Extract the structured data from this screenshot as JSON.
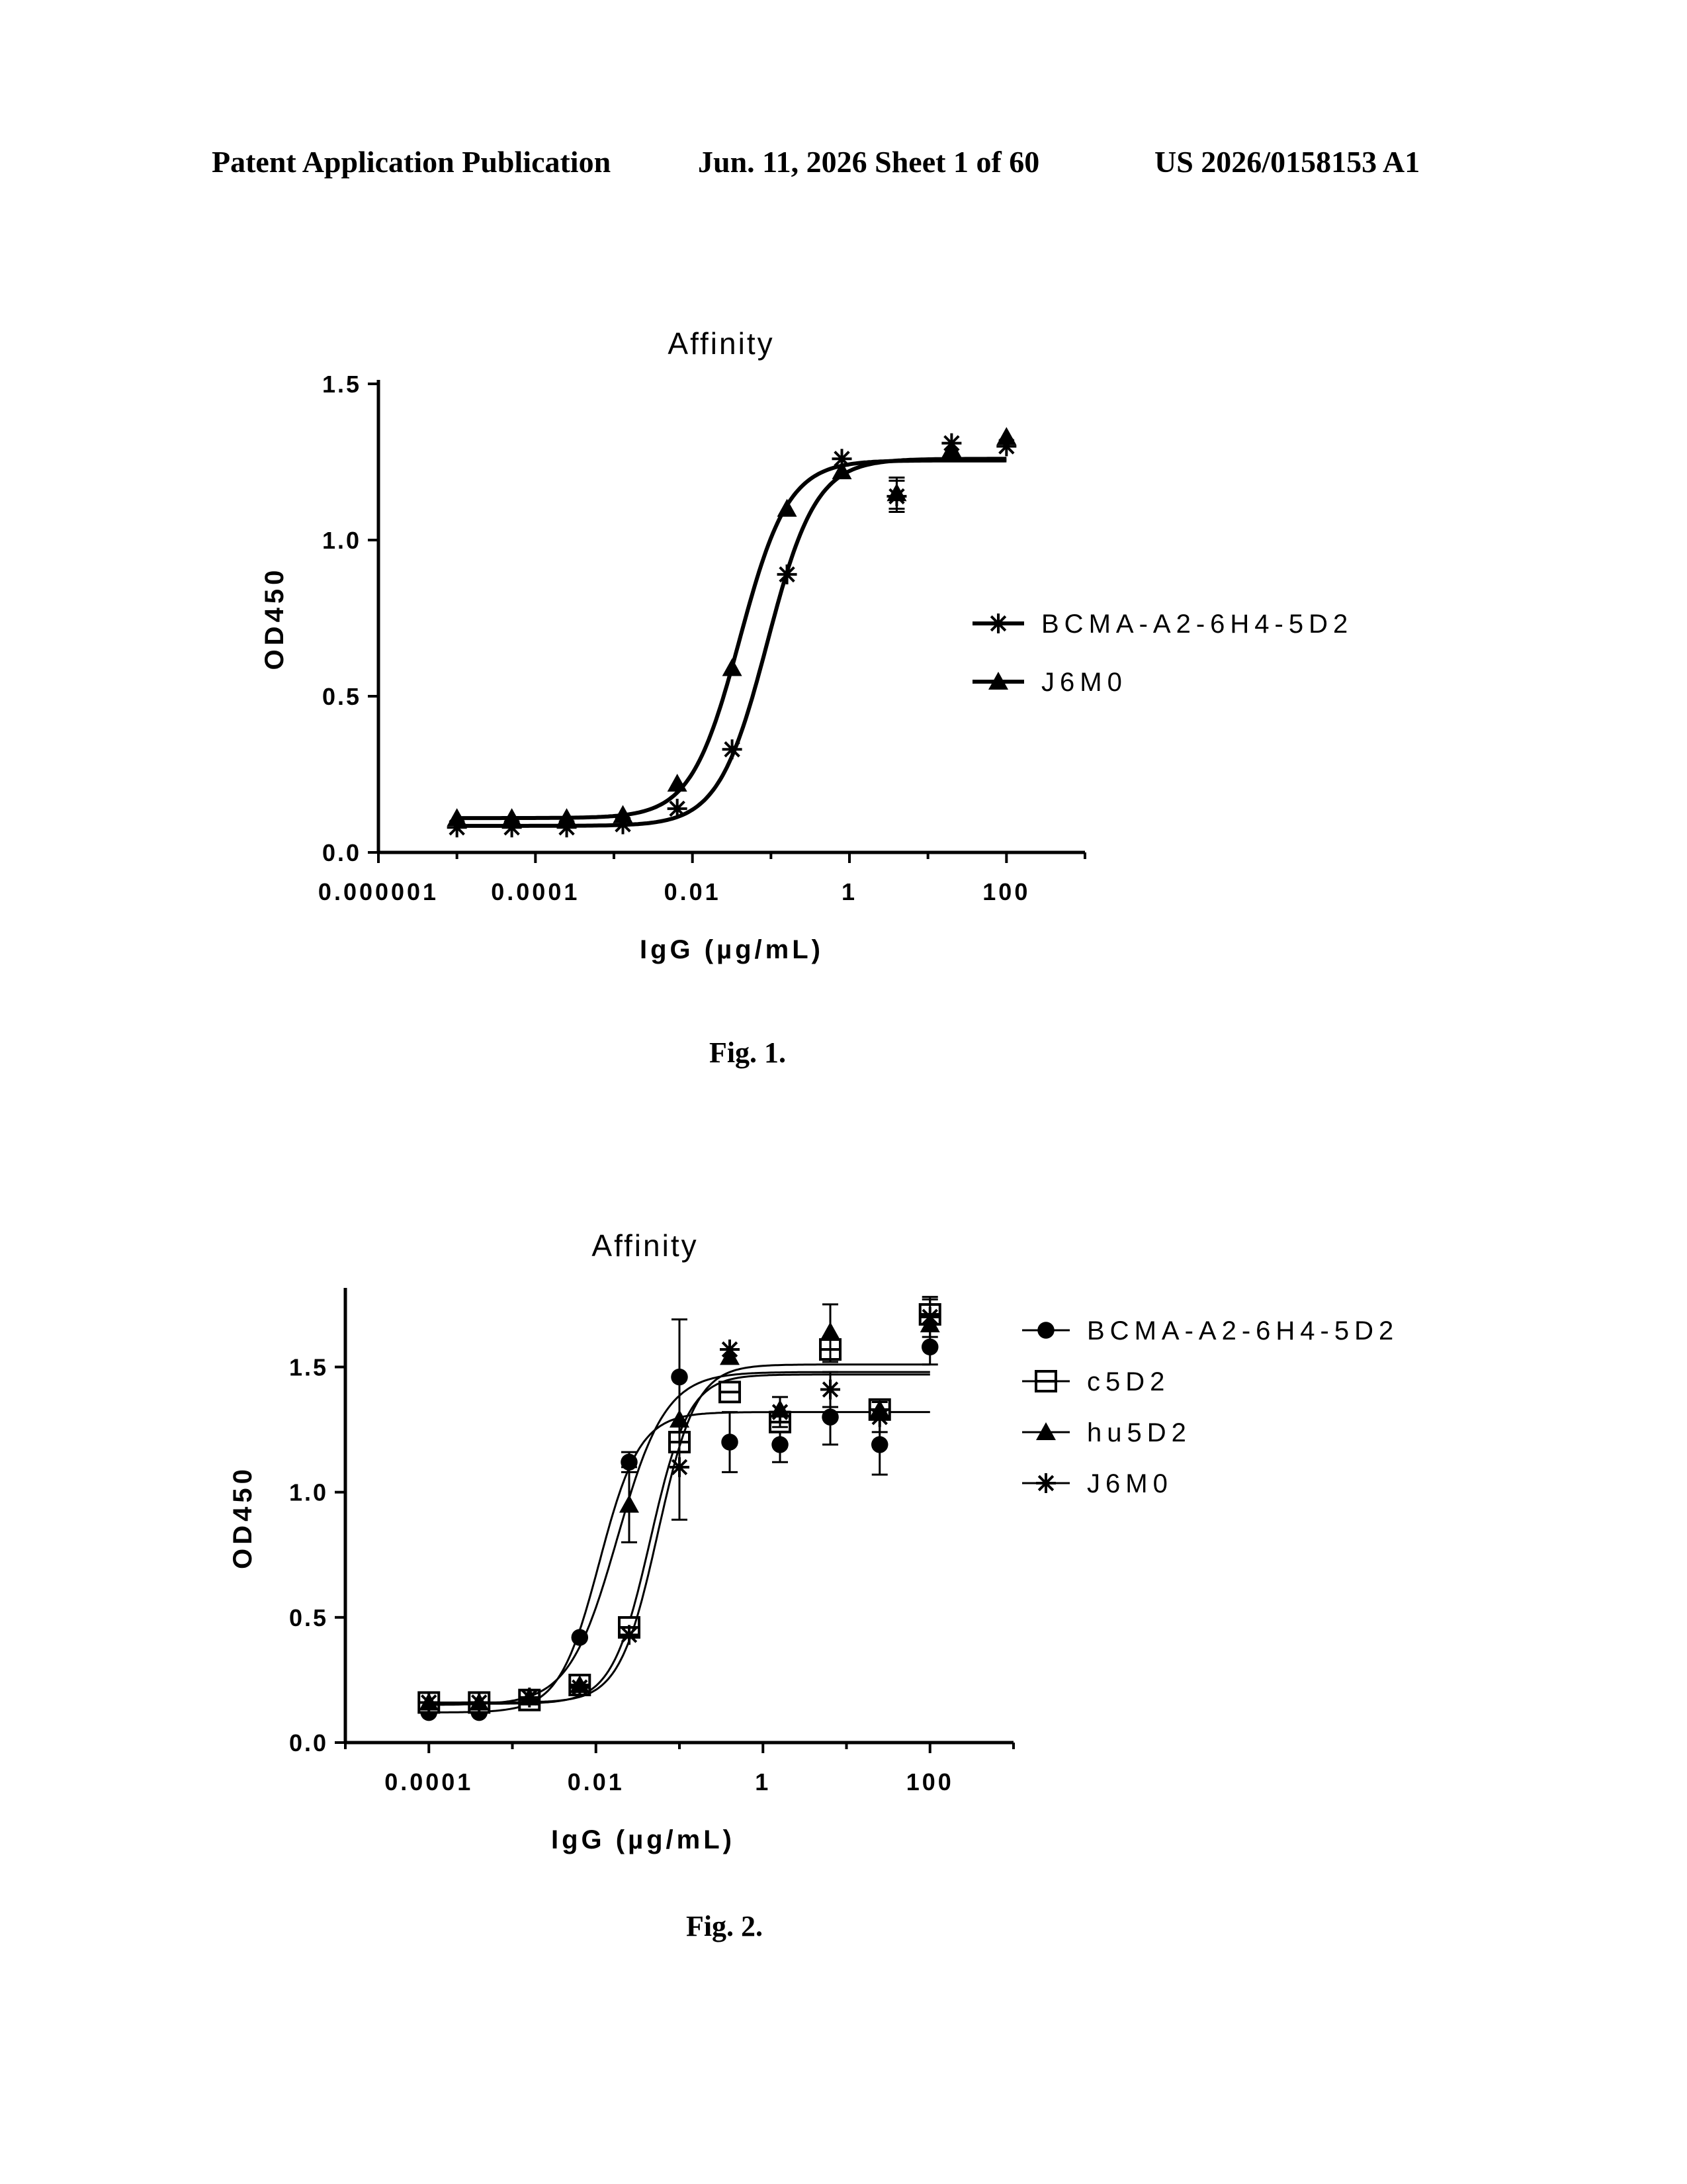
{
  "header": {
    "left": "Patent Application Publication",
    "date_sheet": "Jun. 11, 2026  Sheet 1 of 60",
    "number": "US 2026/0158153 A1"
  },
  "figures": [
    {
      "caption": "Fig. 1.",
      "chart_data": {
        "type": "scatter",
        "title": "Affinity",
        "xlabel": "IgG (µg/mL)",
        "ylabel": "OD450",
        "xscale": "log",
        "xlim": [
          1e-06,
          1000
        ],
        "ylim": [
          0,
          1.5
        ],
        "xticks": [
          1e-06,
          0.0001,
          0.01,
          1,
          100
        ],
        "xtick_labels": [
          "0.000001",
          "0.0001",
          "0.01",
          "1",
          "100"
        ],
        "yticks": [
          0,
          0.5,
          1.0,
          1.5
        ],
        "ytick_labels": [
          "0.0",
          "0.5",
          "1.0",
          "1.5"
        ],
        "grid": false,
        "legend_position": "right",
        "series": [
          {
            "name": "BCMA-A2-6H4-5D2",
            "marker": "asterisk",
            "x": [
              1e-05,
              5e-05,
              0.00025,
              0.0013,
              0.0064,
              0.032,
              0.16,
              0.8,
              4,
              20,
              100
            ],
            "y": [
              0.08,
              0.08,
              0.08,
              0.09,
              0.14,
              0.33,
              0.89,
              1.26,
              1.14,
              1.31,
              1.3
            ],
            "err": [
              0,
              0,
              0,
              0,
              0,
              0,
              0,
              0,
              0.05,
              0,
              0
            ],
            "fit": {
              "bottom": 0.085,
              "top": 1.26,
              "ec50": 0.09,
              "hill": 1.4
            }
          },
          {
            "name": "J6M0",
            "marker": "triangle",
            "x": [
              1e-05,
              5e-05,
              0.00025,
              0.0013,
              0.0064,
              0.032,
              0.16,
              0.8,
              4,
              20,
              100
            ],
            "y": [
              0.11,
              0.11,
              0.11,
              0.12,
              0.22,
              0.59,
              1.1,
              1.22,
              1.15,
              1.29,
              1.33
            ],
            "err": [
              0,
              0,
              0,
              0,
              0,
              0,
              0,
              0,
              0.05,
              0,
              0
            ],
            "fit": {
              "bottom": 0.11,
              "top": 1.255,
              "ec50": 0.04,
              "hill": 1.4
            }
          }
        ]
      }
    },
    {
      "caption": "Fig. 2.",
      "chart_data": {
        "type": "scatter",
        "title": "Affinity",
        "xlabel": "IgG (µg/mL)",
        "ylabel": "OD450",
        "xscale": "log",
        "xlim": [
          1e-05,
          1000
        ],
        "ylim": [
          0,
          1.8
        ],
        "xticks": [
          0.0001,
          0.01,
          1,
          100
        ],
        "xtick_labels": [
          "0.0001",
          "0.01",
          "1",
          "100"
        ],
        "yticks": [
          0,
          0.5,
          1.0,
          1.5
        ],
        "ytick_labels": [
          "0.0",
          "0.5",
          "1.0",
          "1.5"
        ],
        "grid": false,
        "legend_position": "top-right",
        "series": [
          {
            "name": "BCMA-A2-6H4-5D2",
            "marker": "circle",
            "x": [
              0.0001,
              0.0004,
              0.0016,
              0.0064,
              0.025,
              0.1,
              0.4,
              1.6,
              6.4,
              25,
              100
            ],
            "y": [
              0.12,
              0.12,
              0.18,
              0.42,
              1.12,
              1.46,
              1.2,
              1.19,
              1.3,
              1.19,
              1.58
            ],
            "err": [
              0,
              0,
              0,
              0,
              0.04,
              0,
              0.12,
              0.07,
              0.11,
              0.12,
              0.07
            ],
            "fit": {
              "bottom": 0.12,
              "top": 1.32,
              "ec50": 0.011,
              "hill": 1.8
            }
          },
          {
            "name": "c5D2",
            "marker": "square",
            "x": [
              0.0001,
              0.0004,
              0.0016,
              0.0064,
              0.025,
              0.1,
              0.4,
              1.6,
              6.4,
              25,
              100
            ],
            "y": [
              0.16,
              0.16,
              0.17,
              0.23,
              0.46,
              1.2,
              1.4,
              1.28,
              1.57,
              1.33,
              1.71
            ],
            "err": [
              0,
              0,
              0,
              0,
              0,
              0,
              0,
              0,
              0.05,
              0,
              0.06
            ],
            "fit": {
              "bottom": 0.155,
              "top": 1.47,
              "ec50": 0.045,
              "hill": 1.9
            }
          },
          {
            "name": "hu5D2",
            "marker": "triangle",
            "x": [
              0.0001,
              0.0004,
              0.0016,
              0.0064,
              0.025,
              0.1,
              0.4,
              1.6,
              6.4,
              25,
              100
            ],
            "y": [
              0.16,
              0.16,
              0.18,
              0.23,
              0.95,
              1.29,
              1.54,
              1.33,
              1.64,
              1.33,
              1.67
            ],
            "err": [
              0,
              0,
              0,
              0,
              0.15,
              0.4,
              0,
              0,
              0.11,
              0,
              0
            ],
            "fit": {
              "bottom": 0.15,
              "top": 1.48,
              "ec50": 0.018,
              "hill": 1.5
            }
          },
          {
            "name": "J6M0",
            "marker": "asterisk",
            "x": [
              0.0001,
              0.0004,
              0.0016,
              0.0064,
              0.025,
              0.1,
              0.4,
              1.6,
              6.4,
              25,
              100
            ],
            "y": [
              0.16,
              0.16,
              0.18,
              0.22,
              0.43,
              1.1,
              1.57,
              1.32,
              1.41,
              1.3,
              1.7
            ],
            "err": [
              0,
              0,
              0,
              0,
              0,
              0,
              0,
              0.06,
              0.07,
              0.06,
              0.08
            ],
            "fit": {
              "bottom": 0.16,
              "top": 1.51,
              "ec50": 0.055,
              "hill": 1.9
            }
          }
        ]
      }
    }
  ]
}
